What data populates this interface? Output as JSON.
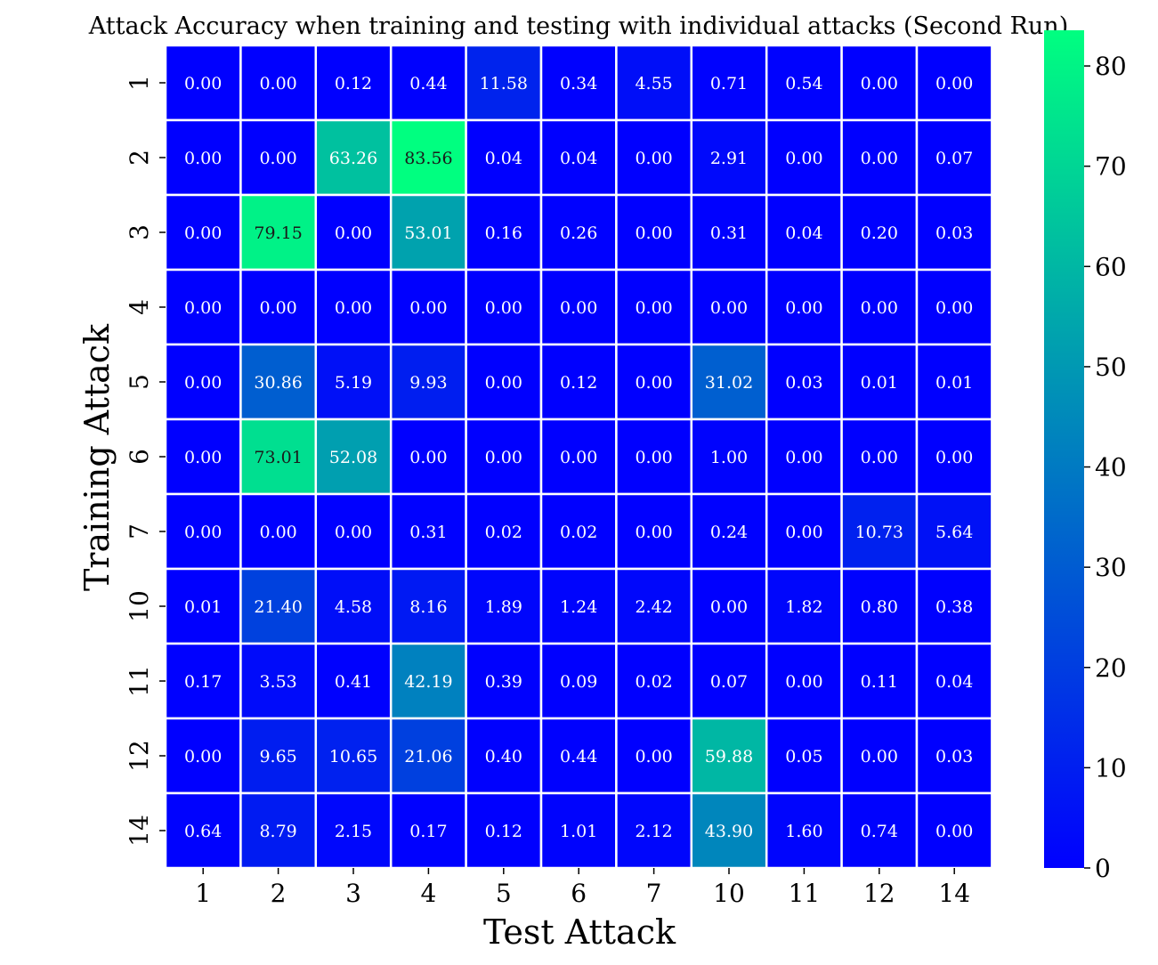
{
  "chart_data": {
    "type": "heatmap",
    "title": "Attack Accuracy when training and testing with individual attacks (Second Run)",
    "xlabel": "Test Attack",
    "ylabel": "Training Attack",
    "x_categories": [
      "1",
      "2",
      "3",
      "4",
      "5",
      "6",
      "7",
      "10",
      "11",
      "12",
      "14"
    ],
    "y_categories": [
      "1",
      "2",
      "3",
      "4",
      "5",
      "6",
      "7",
      "10",
      "11",
      "12",
      "14"
    ],
    "values": [
      [
        0.0,
        0.0,
        0.12,
        0.44,
        11.58,
        0.34,
        4.55,
        0.71,
        0.54,
        0.0,
        0.0
      ],
      [
        0.0,
        0.0,
        63.26,
        83.56,
        0.04,
        0.04,
        0.0,
        2.91,
        0.0,
        0.0,
        0.07
      ],
      [
        0.0,
        79.15,
        0.0,
        53.01,
        0.16,
        0.26,
        0.0,
        0.31,
        0.04,
        0.2,
        0.03
      ],
      [
        0.0,
        0.0,
        0.0,
        0.0,
        0.0,
        0.0,
        0.0,
        0.0,
        0.0,
        0.0,
        0.0
      ],
      [
        0.0,
        30.86,
        5.19,
        9.93,
        0.0,
        0.12,
        0.0,
        31.02,
        0.03,
        0.01,
        0.01
      ],
      [
        0.0,
        73.01,
        52.08,
        0.0,
        0.0,
        0.0,
        0.0,
        1.0,
        0.0,
        0.0,
        0.0
      ],
      [
        0.0,
        0.0,
        0.0,
        0.31,
        0.02,
        0.02,
        0.0,
        0.24,
        0.0,
        10.73,
        5.64
      ],
      [
        0.01,
        21.4,
        4.58,
        8.16,
        1.89,
        1.24,
        2.42,
        0.0,
        1.82,
        0.8,
        0.38
      ],
      [
        0.17,
        3.53,
        0.41,
        42.19,
        0.39,
        0.09,
        0.02,
        0.07,
        0.0,
        0.11,
        0.04
      ],
      [
        0.0,
        9.65,
        10.65,
        21.06,
        0.4,
        0.44,
        0.0,
        59.88,
        0.05,
        0.0,
        0.03
      ],
      [
        0.64,
        8.79,
        2.15,
        0.17,
        0.12,
        1.01,
        2.12,
        43.9,
        1.6,
        0.74,
        0.0
      ]
    ],
    "colormap": {
      "low": "#0000ff",
      "high": "#00ff80"
    },
    "colorbar": {
      "vmin": 0,
      "vmax": 83.56,
      "ticks": [
        0,
        10,
        20,
        30,
        40,
        50,
        60,
        70,
        80
      ]
    },
    "value_format": "2 decimals",
    "label_color_dark_above": 70,
    "grid_line_color": "#ffffff"
  }
}
